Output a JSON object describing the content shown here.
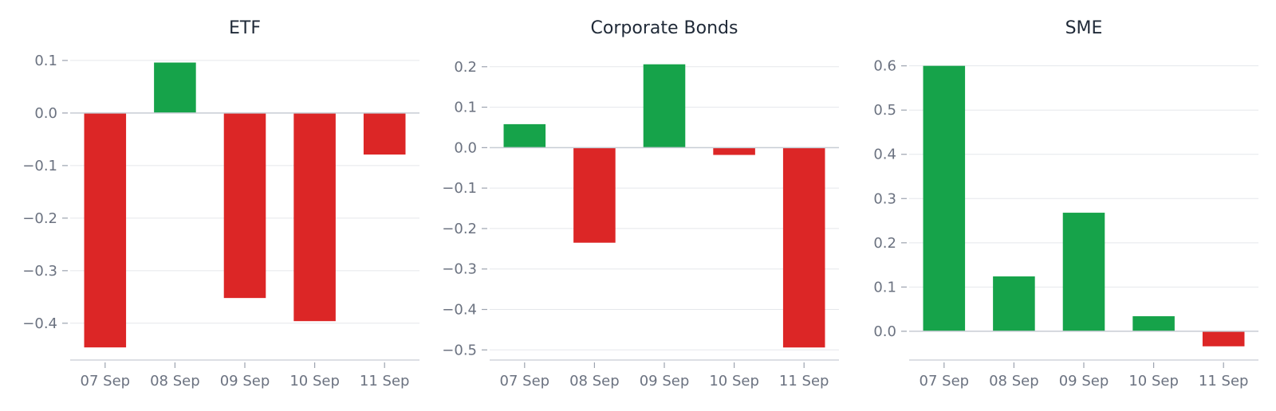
{
  "chart_data": [
    {
      "type": "bar",
      "title": "ETF",
      "categories": [
        "07 Sep",
        "08 Sep",
        "09 Sep",
        "10 Sep",
        "11 Sep"
      ],
      "values": [
        -0.446,
        0.096,
        -0.352,
        -0.396,
        -0.079
      ],
      "ylim": [
        -0.47,
        0.115
      ],
      "yticks": [
        0.1,
        0.0,
        -0.1,
        -0.2,
        -0.3,
        -0.4
      ],
      "ytick_labels": [
        "0.1",
        "0.0",
        "−0.1",
        "−0.2",
        "−0.3",
        "−0.4"
      ],
      "grid": true
    },
    {
      "type": "bar",
      "title": "Corporate Bonds",
      "categories": [
        "07 Sep",
        "08 Sep",
        "09 Sep",
        "10 Sep",
        "11 Sep"
      ],
      "values": [
        0.058,
        -0.235,
        0.206,
        -0.018,
        -0.494
      ],
      "ylim": [
        -0.525,
        0.235
      ],
      "yticks": [
        0.2,
        0.1,
        0.0,
        -0.1,
        -0.2,
        -0.3,
        -0.4,
        -0.5
      ],
      "ytick_labels": [
        "0.2",
        "0.1",
        "0.0",
        "−0.1",
        "−0.2",
        "−0.3",
        "−0.4",
        "−0.5"
      ],
      "grid": true
    },
    {
      "type": "bar",
      "title": "SME",
      "categories": [
        "07 Sep",
        "08 Sep",
        "09 Sep",
        "10 Sep",
        "11 Sep"
      ],
      "values": [
        0.6,
        0.124,
        0.268,
        0.034,
        -0.034
      ],
      "ylim": [
        -0.065,
        0.63
      ],
      "yticks": [
        0.6,
        0.5,
        0.4,
        0.3,
        0.2,
        0.1,
        0.0
      ],
      "ytick_labels": [
        "0.6",
        "0.5",
        "0.4",
        "0.3",
        "0.2",
        "0.1",
        "0.0"
      ],
      "grid": true
    }
  ],
  "colors": {
    "positive": "#16a34a",
    "negative": "#dc2626"
  }
}
